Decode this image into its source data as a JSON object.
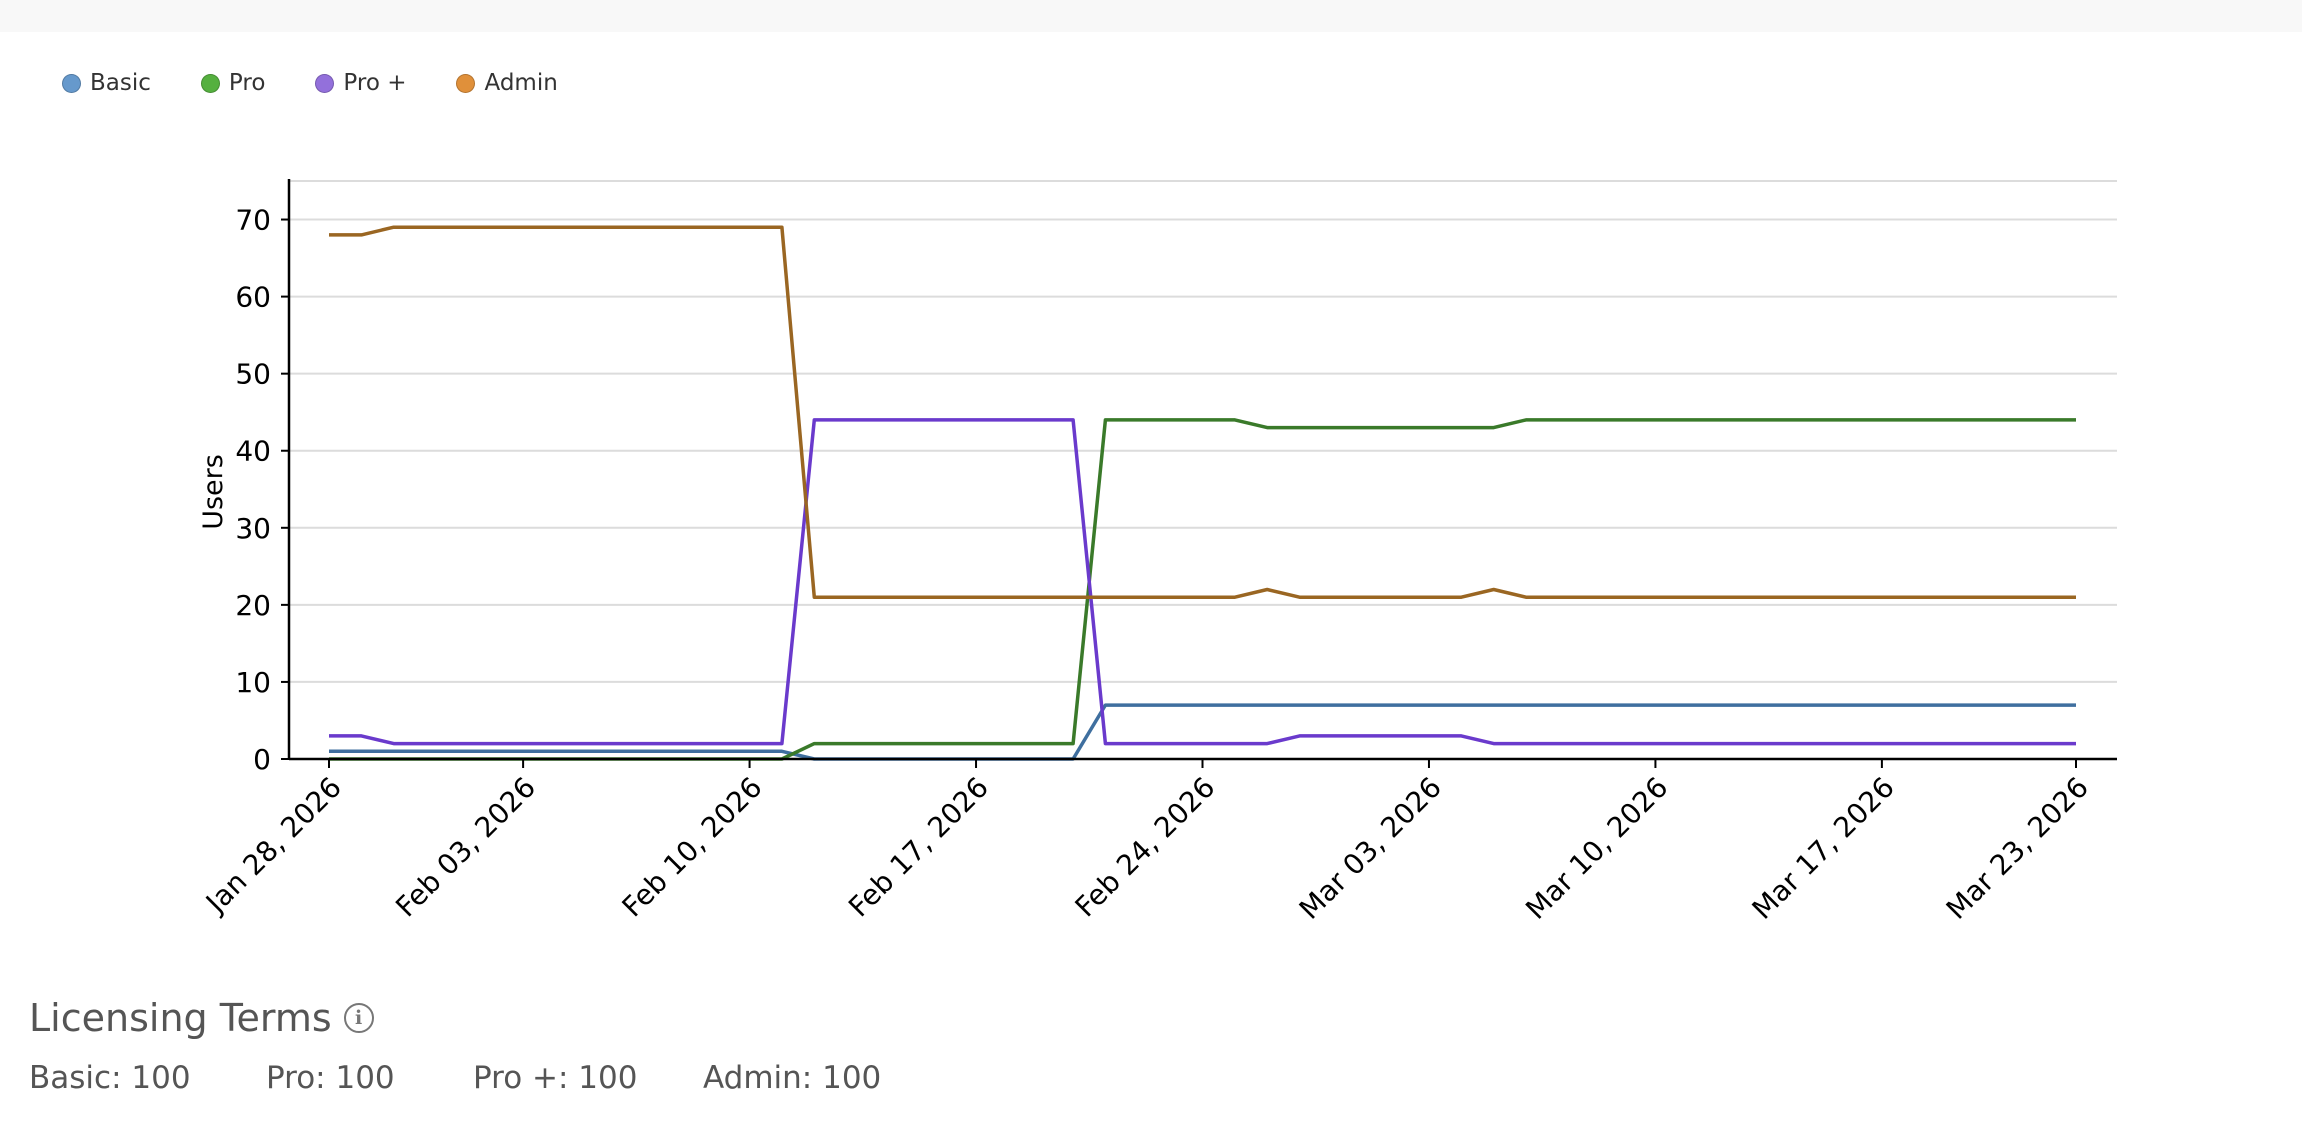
{
  "legend": [
    {
      "label": "Basic",
      "color": "#6699cc"
    },
    {
      "label": "Pro",
      "color": "#55b03f"
    },
    {
      "label": "Pro +",
      "color": "#9370db"
    },
    {
      "label": "Admin",
      "color": "#e0903a"
    }
  ],
  "chart_data": {
    "type": "line",
    "title": "",
    "xlabel": "",
    "ylabel": "Users",
    "ylim": [
      0,
      75
    ],
    "yticks": [
      0,
      10,
      20,
      30,
      40,
      50,
      60,
      70
    ],
    "grid": true,
    "legend_position": "top-left",
    "xtick_labels": [
      {
        "date": "2026-01-28",
        "label": "Jan 28, 2026"
      },
      {
        "date": "2026-02-03",
        "label": "Feb 03, 2026"
      },
      {
        "date": "2026-02-10",
        "label": "Feb 10, 2026"
      },
      {
        "date": "2026-02-17",
        "label": "Feb 17, 2026"
      },
      {
        "date": "2026-02-24",
        "label": "Feb 24, 2026"
      },
      {
        "date": "2026-03-03",
        "label": "Mar 03, 2026"
      },
      {
        "date": "2026-03-10",
        "label": "Mar 10, 2026"
      },
      {
        "date": "2026-03-17",
        "label": "Mar 17, 2026"
      },
      {
        "date": "2026-03-23",
        "label": "Mar 23, 2026"
      }
    ],
    "x": [
      "2026-01-28",
      "2026-01-29",
      "2026-01-30",
      "2026-01-31",
      "2026-02-01",
      "2026-02-02",
      "2026-02-03",
      "2026-02-04",
      "2026-02-05",
      "2026-02-06",
      "2026-02-07",
      "2026-02-08",
      "2026-02-09",
      "2026-02-10",
      "2026-02-11",
      "2026-02-12",
      "2026-02-13",
      "2026-02-14",
      "2026-02-15",
      "2026-02-16",
      "2026-02-17",
      "2026-02-18",
      "2026-02-19",
      "2026-02-20",
      "2026-02-21",
      "2026-02-22",
      "2026-02-23",
      "2026-02-24",
      "2026-02-25",
      "2026-02-26",
      "2026-02-27",
      "2026-02-28",
      "2026-03-01",
      "2026-03-02",
      "2026-03-03",
      "2026-03-04",
      "2026-03-05",
      "2026-03-06",
      "2026-03-07",
      "2026-03-08",
      "2026-03-09",
      "2026-03-10",
      "2026-03-11",
      "2026-03-12",
      "2026-03-13",
      "2026-03-14",
      "2026-03-15",
      "2026-03-16",
      "2026-03-17",
      "2026-03-18",
      "2026-03-19",
      "2026-03-20",
      "2026-03-21",
      "2026-03-22",
      "2026-03-23"
    ],
    "series": [
      {
        "name": "Basic",
        "color": "#3f6f9f",
        "values": [
          1,
          1,
          1,
          1,
          1,
          1,
          1,
          1,
          1,
          1,
          1,
          1,
          1,
          1,
          1,
          0,
          0,
          0,
          0,
          0,
          0,
          0,
          0,
          0,
          7,
          7,
          7,
          7,
          7,
          7,
          7,
          7,
          7,
          7,
          7,
          7,
          7,
          7,
          7,
          7,
          7,
          7,
          7,
          7,
          7,
          7,
          7,
          7,
          7,
          7,
          7,
          7,
          7,
          7,
          7
        ]
      },
      {
        "name": "Pro",
        "color": "#3a7a2a",
        "values": [
          0,
          0,
          0,
          0,
          0,
          0,
          0,
          0,
          0,
          0,
          0,
          0,
          0,
          0,
          0,
          2,
          2,
          2,
          2,
          2,
          2,
          2,
          2,
          2,
          44,
          44,
          44,
          44,
          44,
          43,
          43,
          43,
          43,
          43,
          43,
          43,
          43,
          44,
          44,
          44,
          44,
          44,
          44,
          44,
          44,
          44,
          44,
          44,
          44,
          44,
          44,
          44,
          44,
          44,
          44
        ]
      },
      {
        "name": "Pro +",
        "color": "#6a3acc",
        "values": [
          3,
          3,
          2,
          2,
          2,
          2,
          2,
          2,
          2,
          2,
          2,
          2,
          2,
          2,
          2,
          44,
          44,
          44,
          44,
          44,
          44,
          44,
          44,
          44,
          2,
          2,
          2,
          2,
          2,
          2,
          3,
          3,
          3,
          3,
          3,
          3,
          2,
          2,
          2,
          2,
          2,
          2,
          2,
          2,
          2,
          2,
          2,
          2,
          2,
          2,
          2,
          2,
          2,
          2,
          2
        ]
      },
      {
        "name": "Admin",
        "color": "#9a6622",
        "values": [
          68,
          68,
          69,
          69,
          69,
          69,
          69,
          69,
          69,
          69,
          69,
          69,
          69,
          69,
          69,
          21,
          21,
          21,
          21,
          21,
          21,
          21,
          21,
          21,
          21,
          21,
          21,
          21,
          21,
          22,
          21,
          21,
          21,
          21,
          21,
          21,
          22,
          21,
          21,
          21,
          21,
          21,
          21,
          21,
          21,
          21,
          21,
          21,
          21,
          21,
          21,
          21,
          21,
          21,
          21
        ]
      }
    ]
  },
  "licensing": {
    "title": "Licensing Terms",
    "info_icon": "i",
    "terms": [
      "Basic: 100",
      "Pro: 100",
      "Pro +: 100",
      "Admin: 100"
    ]
  }
}
